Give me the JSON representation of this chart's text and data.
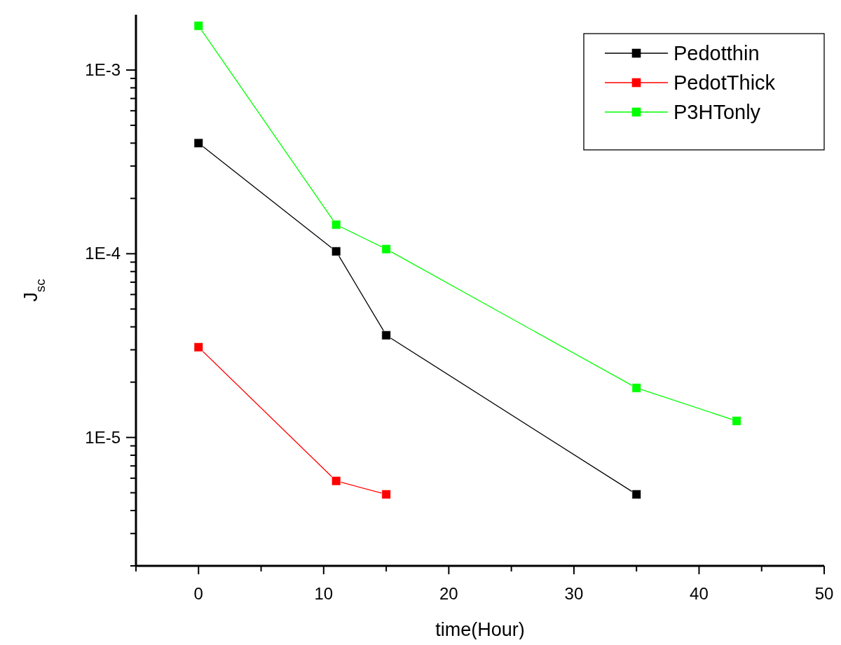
{
  "chart_data": {
    "type": "line",
    "xlabel": "time(Hour)",
    "ylabel": "J$_{sc}$",
    "log": "y",
    "marker": "square",
    "line_style": "solid",
    "legend": "top right",
    "grid": false,
    "xlim": [
      -5,
      50
    ],
    "xticks": [
      {
        "value": -5,
        "label": null
      },
      0,
      {
        "value": 5,
        "label": null
      },
      10,
      {
        "value": 15,
        "label": null
      },
      20,
      {
        "value": 25,
        "label": null
      },
      30,
      {
        "value": 35,
        "label": null
      },
      40,
      {
        "value": 45,
        "label": null
      },
      50
    ],
    "ylim": [
      2e-06,
      0.002
    ],
    "yticks": [
      {
        "value": 2e-06,
        "label": null
      },
      {
        "value": 3e-06,
        "label": null
      },
      {
        "value": 4e-06,
        "label": null
      },
      {
        "value": 5e-06,
        "label": null
      },
      {
        "value": 6e-06,
        "label": null
      },
      {
        "value": 7e-06,
        "label": null
      },
      {
        "value": 8e-06,
        "label": null
      },
      {
        "value": 9e-06,
        "label": null
      },
      {
        "value": 1e-05,
        "label": "1E-5"
      },
      {
        "value": 2e-05,
        "label": null
      },
      {
        "value": 3e-05,
        "label": null
      },
      {
        "value": 4e-05,
        "label": null
      },
      {
        "value": 5e-05,
        "label": null
      },
      {
        "value": 6e-05,
        "label": null
      },
      {
        "value": 7e-05,
        "label": null
      },
      {
        "value": 8e-05,
        "label": null
      },
      {
        "value": 9e-05,
        "label": null
      },
      {
        "value": 0.0001,
        "label": "1E-4"
      },
      {
        "value": 0.0002,
        "label": null
      },
      {
        "value": 0.0003,
        "label": null
      },
      {
        "value": 0.0004,
        "label": null
      },
      {
        "value": 0.0005,
        "label": null
      },
      {
        "value": 0.0006,
        "label": null
      },
      {
        "value": 0.0007,
        "label": null
      },
      {
        "value": 0.0008,
        "label": null
      },
      {
        "value": 0.0009,
        "label": null
      },
      {
        "value": 0.001,
        "label": "1E-3"
      }
    ],
    "series": [
      {
        "name": "Pedotthin",
        "color": "#000000",
        "x": [
          0,
          11,
          15,
          35
        ],
        "values": [
          0.0004,
          0.000103,
          3.6e-05,
          4.9e-06
        ]
      },
      {
        "name": "PedotThick",
        "color": "#ff0000",
        "x": [
          0,
          11,
          15
        ],
        "values": [
          3.1e-05,
          5.8e-06,
          4.9e-06
        ]
      },
      {
        "name": "P3HTonly",
        "color": "#00ff00",
        "x": [
          0,
          11,
          15,
          35,
          43
        ],
        "values": [
          0.00174,
          0.000144,
          0.000106,
          1.86e-05,
          1.23e-05
        ]
      }
    ]
  }
}
